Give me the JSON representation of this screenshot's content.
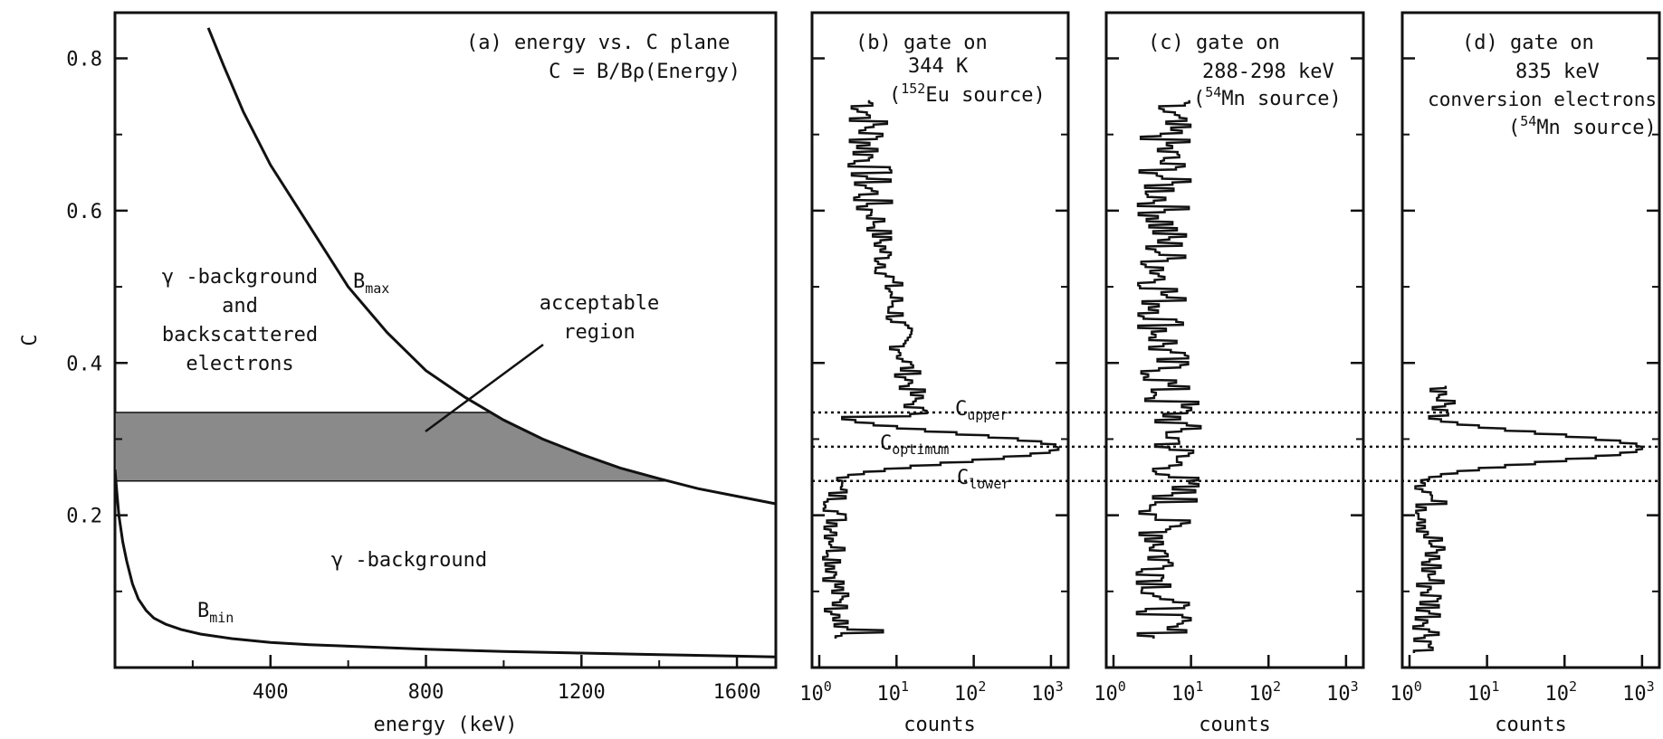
{
  "chart_data": [
    {
      "type": "line",
      "panel": "a",
      "title_lines": [
        "(a)   energy vs. C plane",
        "C = B/Bρ(Energy)"
      ],
      "xlabel": "energy (keV)",
      "ylabel": "C",
      "xlim": [
        0,
        1700
      ],
      "ylim": [
        0.0,
        0.86
      ],
      "xticks": [
        400,
        800,
        1200,
        1600
      ],
      "yticks": [
        0.2,
        0.4,
        0.6,
        0.8
      ],
      "series": [
        {
          "name": "Bmax",
          "x": [
            240,
            280,
            330,
            400,
            500,
            600,
            700,
            800,
            900,
            1000,
            1100,
            1200,
            1300,
            1400,
            1500,
            1600,
            1700
          ],
          "y": [
            0.84,
            0.79,
            0.73,
            0.66,
            0.58,
            0.5,
            0.44,
            0.39,
            0.355,
            0.325,
            0.3,
            0.28,
            0.262,
            0.248,
            0.235,
            0.225,
            0.215
          ]
        },
        {
          "name": "Bmin",
          "x": [
            0,
            5,
            10,
            20,
            30,
            45,
            60,
            80,
            100,
            130,
            170,
            220,
            300,
            400,
            500,
            600,
            800,
            1000,
            1200,
            1400,
            1600,
            1700
          ],
          "y": [
            0.26,
            0.23,
            0.2,
            0.165,
            0.14,
            0.11,
            0.09,
            0.075,
            0.065,
            0.057,
            0.05,
            0.044,
            0.038,
            0.033,
            0.03,
            0.028,
            0.024,
            0.021,
            0.019,
            0.017,
            0.015,
            0.014
          ]
        }
      ],
      "labels": {
        "bmax": "B",
        "bmax_sub": "max",
        "bmin": "B",
        "bmin_sub": "min",
        "gamma_bg_back": [
          "γ -background",
          "and",
          "backscattered",
          "electrons"
        ],
        "gamma_bg": "γ -background",
        "acceptable": [
          "acceptable",
          "region"
        ]
      },
      "shaded_band": {
        "c_lower": 0.245,
        "c_upper": 0.335
      }
    },
    {
      "type": "line",
      "panel": "b",
      "title_lines": [
        "(b)  gate on",
        "344 K",
        "(",
        "152",
        "Eu source)"
      ],
      "xlabel": "counts",
      "xscale": "log",
      "xticks": [
        "10",
        "10",
        "10",
        "10"
      ],
      "xtick_exponents": [
        "0",
        "1",
        "2",
        "3"
      ],
      "c_levels": {
        "upper": 0.335,
        "optimum": 0.29,
        "lower": 0.245
      },
      "c_labels": {
        "upper": "C",
        "upper_sub": "upper",
        "optimum": "C",
        "optimum_sub": "optimum",
        "lower": "C",
        "lower_sub": "lower"
      }
    },
    {
      "type": "line",
      "panel": "c",
      "title_lines": [
        "(c)  gate on",
        "288-298 keV",
        "(",
        "54",
        "Mn source)"
      ],
      "xlabel": "counts",
      "xscale": "log",
      "xticks": [
        "10",
        "10",
        "10",
        "10"
      ],
      "xtick_exponents": [
        "0",
        "1",
        "2",
        "3"
      ]
    },
    {
      "type": "line",
      "panel": "d",
      "title_lines": [
        "(d)  gate on",
        "835 keV",
        "conversion electrons",
        "(",
        "54",
        "Mn source)"
      ],
      "xlabel": "counts",
      "xscale": "log",
      "xticks": [
        "10",
        "10",
        "10",
        "10"
      ],
      "xtick_exponents": [
        "0",
        "1",
        "2",
        "3"
      ]
    }
  ]
}
